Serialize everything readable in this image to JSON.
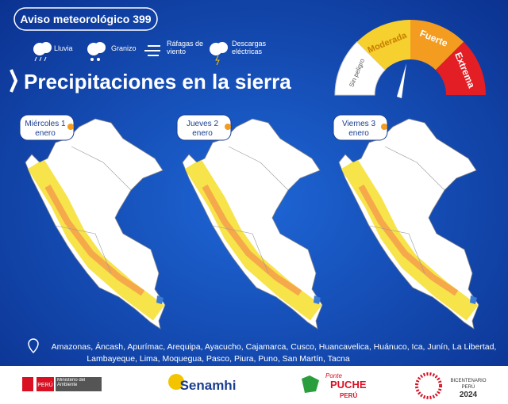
{
  "header": {
    "badge": "Aviso meteorológico 399",
    "title": "Precipitaciones en la sierra"
  },
  "legend": [
    "Lluvia",
    "Granizo",
    "Ráfagas de viento",
    "Descargas eléctricas"
  ],
  "gauge": [
    "Sin peligro",
    "Moderada",
    "Fuerte",
    "Extrema"
  ],
  "maps": [
    {
      "day": "Miércoles 1",
      "month": "enero"
    },
    {
      "day": "Jueves 2",
      "month": "enero"
    },
    {
      "day": "Viernes 3",
      "month": "enero"
    }
  ],
  "regions": [
    "Amazonas, Áncash, Apurímac, Arequipa, Ayacucho, Cajamarca, Cusco, Huancavelica, Huánuco, Ica, Junín, La Libertad,",
    "Lambayeque, Lima, Moquegua, Pasco, Piura, Puno, San Martín, Tacna"
  ],
  "footer": {
    "peru": "PERÚ",
    "ministry": "Ministerio del Ambiente",
    "senamhi": "Senamhi",
    "ponte": "Ponte",
    "puche": "PUCHE",
    "puche_peru": "PERÚ",
    "bicentenario": "BICENTENARIO",
    "bicentenario_peru": "PERÚ",
    "year": "2024"
  }
}
